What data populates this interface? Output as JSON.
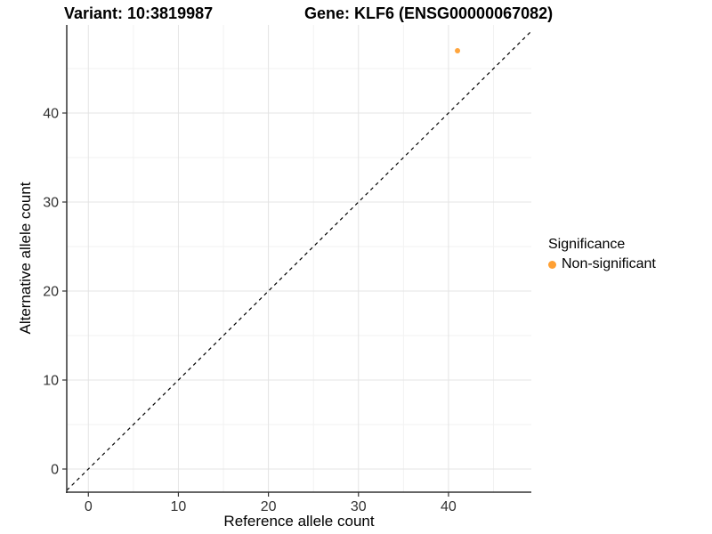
{
  "titles": {
    "variant": "Variant: 10:3819987",
    "gene": "Gene: KLF6 (ENSG00000067082)"
  },
  "chart_data": {
    "type": "scatter",
    "xlabel": "Reference allele count",
    "ylabel": "Alternative allele count",
    "xlim": [
      -2.4,
      49.2
    ],
    "ylim": [
      -2.6,
      49.9
    ],
    "x_major_ticks": [
      0,
      10,
      20,
      30,
      40
    ],
    "y_major_ticks": [
      0,
      10,
      20,
      30,
      40
    ],
    "x_minor_ticks": [
      5,
      15,
      25,
      35,
      45
    ],
    "y_minor_ticks": [
      5,
      15,
      25,
      35,
      45
    ],
    "grid": "major+minor",
    "legend_position": "right",
    "reference_line": {
      "type": "identity",
      "slope": 1,
      "intercept": 0,
      "style": "dashed",
      "color": "#000000"
    },
    "series": [
      {
        "name": "Non-significant",
        "color": "#FFA033",
        "points": [
          {
            "x": 41,
            "y": 47
          }
        ]
      }
    ]
  },
  "legend": {
    "title": "Significance",
    "items": [
      {
        "label": "Non-significant",
        "color": "#FFA033"
      }
    ]
  },
  "colors": {
    "point": "#FFA033",
    "axis_line": "#333333",
    "tick_label": "#333333",
    "grid_major": "#e4e4e4",
    "grid_minor": "#f2f2f2",
    "background": "#ffffff"
  }
}
